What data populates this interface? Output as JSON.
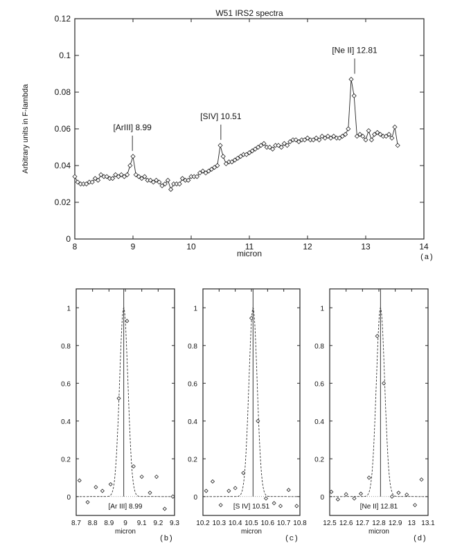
{
  "chart_data": [
    {
      "id": "a",
      "type": "line",
      "title": "W51 IRS2 spectra",
      "xlabel": "micron",
      "ylabel": "Arbitrary units in F-lambda",
      "panel_label": "(a)",
      "xlim": [
        8,
        14
      ],
      "ylim": [
        0,
        0.12
      ],
      "xticks": [
        "8",
        "9",
        "10",
        "11",
        "12",
        "13",
        "14"
      ],
      "yticks": [
        "0",
        "0.02",
        "0.04",
        "0.06",
        "0.08",
        "0.1",
        "0.12"
      ],
      "marker": "diamond",
      "annotations": [
        {
          "text": "[ArIII] 8.99",
          "x": 8.99,
          "y": 0.045
        },
        {
          "text": "[SIV] 10.51",
          "x": 10.51,
          "y": 0.051
        },
        {
          "text": "[Ne II] 12.81",
          "x": 12.81,
          "y": 0.087
        }
      ],
      "x": [
        8.0,
        8.05,
        8.1,
        8.15,
        8.2,
        8.25,
        8.3,
        8.35,
        8.4,
        8.45,
        8.5,
        8.55,
        8.6,
        8.65,
        8.7,
        8.75,
        8.8,
        8.85,
        8.9,
        8.95,
        9.0,
        9.05,
        9.1,
        9.15,
        9.2,
        9.25,
        9.3,
        9.35,
        9.4,
        9.45,
        9.5,
        9.55,
        9.6,
        9.65,
        9.7,
        9.75,
        9.8,
        9.85,
        9.9,
        9.95,
        10.0,
        10.05,
        10.1,
        10.15,
        10.2,
        10.25,
        10.3,
        10.35,
        10.4,
        10.45,
        10.5,
        10.55,
        10.6,
        10.65,
        10.7,
        10.75,
        10.8,
        10.85,
        10.9,
        10.95,
        11.0,
        11.05,
        11.1,
        11.15,
        11.2,
        11.25,
        11.3,
        11.35,
        11.4,
        11.45,
        11.5,
        11.55,
        11.6,
        11.65,
        11.7,
        11.75,
        11.8,
        11.85,
        11.9,
        11.95,
        12.0,
        12.05,
        12.1,
        12.15,
        12.2,
        12.25,
        12.3,
        12.35,
        12.4,
        12.45,
        12.5,
        12.55,
        12.6,
        12.65,
        12.7,
        12.75,
        12.8,
        12.85,
        12.9,
        12.95,
        13.0,
        13.05,
        13.1,
        13.15,
        13.2,
        13.25,
        13.3,
        13.35,
        13.4,
        13.45,
        13.5,
        13.55
      ],
      "values": [
        0.034,
        0.031,
        0.03,
        0.03,
        0.03,
        0.031,
        0.031,
        0.033,
        0.032,
        0.035,
        0.034,
        0.034,
        0.033,
        0.033,
        0.035,
        0.034,
        0.035,
        0.034,
        0.035,
        0.04,
        0.045,
        0.035,
        0.034,
        0.033,
        0.034,
        0.032,
        0.032,
        0.031,
        0.032,
        0.031,
        0.029,
        0.03,
        0.032,
        0.027,
        0.03,
        0.03,
        0.03,
        0.033,
        0.032,
        0.032,
        0.034,
        0.034,
        0.034,
        0.036,
        0.037,
        0.036,
        0.037,
        0.038,
        0.039,
        0.04,
        0.051,
        0.045,
        0.041,
        0.042,
        0.042,
        0.043,
        0.044,
        0.045,
        0.046,
        0.046,
        0.047,
        0.048,
        0.049,
        0.05,
        0.051,
        0.052,
        0.05,
        0.05,
        0.049,
        0.051,
        0.051,
        0.05,
        0.052,
        0.051,
        0.053,
        0.054,
        0.054,
        0.053,
        0.054,
        0.054,
        0.055,
        0.054,
        0.054,
        0.055,
        0.054,
        0.056,
        0.055,
        0.056,
        0.055,
        0.056,
        0.055,
        0.055,
        0.056,
        0.057,
        0.06,
        0.087,
        0.078,
        0.056,
        0.057,
        0.056,
        0.054,
        0.059,
        0.054,
        0.057,
        0.058,
        0.057,
        0.056,
        0.056,
        0.057,
        0.055,
        0.061,
        0.051
      ]
    },
    {
      "id": "b",
      "type": "scatter",
      "title": "",
      "xlabel": "micron",
      "panel_label": "(b)",
      "line_label": "[Ar III] 8.99",
      "line_center": 8.99,
      "xlim": [
        8.7,
        9.3
      ],
      "ylim": [
        -0.1,
        1.1
      ],
      "xticks": [
        "8.7",
        "8.8",
        "8.9",
        "9",
        "9.1",
        "9.2",
        "9.3"
      ],
      "yticks": [
        "0",
        "0.2",
        "0.4",
        "0.6",
        "0.8",
        "1"
      ],
      "fit": {
        "type": "gaussian",
        "center": 8.99,
        "peak": 1.0,
        "fwhm": 0.06
      },
      "x": [
        8.72,
        8.77,
        8.82,
        8.86,
        8.91,
        8.96,
        9.01,
        9.05,
        9.1,
        9.15,
        9.19,
        9.24,
        9.29
      ],
      "values": [
        0.085,
        -0.03,
        0.05,
        0.03,
        0.065,
        0.52,
        0.93,
        0.16,
        0.105,
        0.02,
        0.105,
        -0.065,
        0.0
      ]
    },
    {
      "id": "c",
      "type": "scatter",
      "title": "",
      "xlabel": "micron",
      "panel_label": "(c)",
      "line_label": "[S IV] 10.51",
      "line_center": 10.51,
      "xlim": [
        10.2,
        10.8
      ],
      "ylim": [
        -0.1,
        1.1
      ],
      "xticks": [
        "10.2",
        "10.3",
        "10.4",
        "10.5",
        "10.6",
        "10.7",
        "10.8"
      ],
      "yticks": [
        "0",
        "0.2",
        "0.4",
        "0.6",
        "0.8",
        "1"
      ],
      "fit": {
        "type": "gaussian",
        "center": 10.51,
        "peak": 1.0,
        "fwhm": 0.06
      },
      "x": [
        10.22,
        10.26,
        10.31,
        10.36,
        10.4,
        10.45,
        10.5,
        10.54,
        10.59,
        10.64,
        10.68,
        10.73,
        10.78
      ],
      "values": [
        0.03,
        0.08,
        -0.045,
        0.03,
        0.045,
        0.125,
        0.945,
        0.4,
        -0.01,
        -0.035,
        -0.05,
        0.035,
        -0.05
      ]
    },
    {
      "id": "d",
      "type": "scatter",
      "title": "",
      "xlabel": "micron",
      "panel_label": "(d)",
      "line_label": "[Ne II] 12.81",
      "line_center": 12.81,
      "xlim": [
        12.5,
        13.1
      ],
      "ylim": [
        -0.1,
        1.1
      ],
      "xticks": [
        "12.5",
        "12.6",
        "12.7",
        "12.8",
        "12.9",
        "13",
        "13.1"
      ],
      "yticks": [
        "0",
        "0.2",
        "0.4",
        "0.6",
        "0.8",
        "1"
      ],
      "fit": {
        "type": "gaussian",
        "center": 12.81,
        "peak": 1.0,
        "fwhm": 0.06
      },
      "x": [
        12.51,
        12.55,
        12.6,
        12.65,
        12.69,
        12.74,
        12.79,
        12.83,
        12.88,
        12.92,
        12.97,
        13.02,
        13.06
      ],
      "values": [
        0.025,
        -0.015,
        0.012,
        -0.01,
        0.015,
        0.1,
        0.85,
        0.6,
        0.0,
        0.02,
        0.01,
        -0.045,
        0.09
      ]
    }
  ]
}
